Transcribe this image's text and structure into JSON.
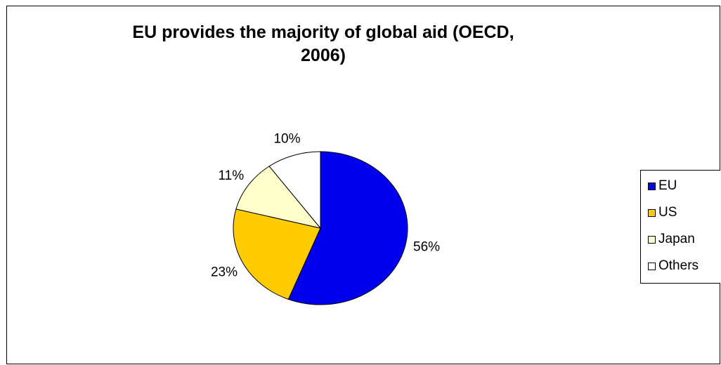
{
  "chart_data": {
    "type": "pie",
    "title": "EU provides the majority of global aid (OECD,\n2006)",
    "slices": [
      {
        "name": "EU",
        "value": 56,
        "label": "56%",
        "color": "#0000ee"
      },
      {
        "name": "US",
        "value": 23,
        "label": "23%",
        "color": "#ffcc00"
      },
      {
        "name": "Japan",
        "value": 11,
        "label": "11%",
        "color": "#ffffcc"
      },
      {
        "name": "Others",
        "value": 10,
        "label": "10%",
        "color": "#ffffff"
      }
    ],
    "legend_position": "right"
  }
}
